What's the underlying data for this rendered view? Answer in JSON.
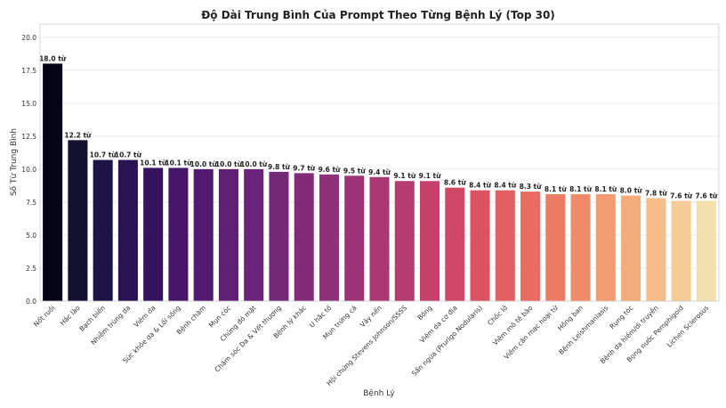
{
  "chart_data": {
    "type": "bar",
    "title": "Độ Dài Trung Bình Của Prompt Theo Từng Bệnh Lý (Top 30)",
    "xlabel": "Bệnh Lý",
    "ylabel": "Số Từ Trung Bình",
    "ylim": [
      0,
      21
    ],
    "yticks": [
      0.0,
      2.5,
      5.0,
      7.5,
      10.0,
      12.5,
      15.0,
      17.5,
      20.0
    ],
    "grid": true,
    "value_suffix": " từ",
    "categories": [
      "Nốt ruồi",
      "Hắc lào",
      "Bạch biến",
      "Nhiễm trùng da",
      "Viêm da",
      "Sức khỏe da & Lối sống",
      "Bệnh chàm",
      "Mụn cóc",
      "Chứng đỏ mặt",
      "Chăm sóc Da & Vết thương",
      "Bệnh lý khác",
      "U hắc tố",
      "Mụn trứng cá",
      "Vảy nến",
      "Hội chứng Stevens Johnson/SSSS",
      "Bỏng",
      "Viêm da cơ địa",
      "Sẩn ngứa (Prurigo Nodularis)",
      "Chốc lở",
      "Viêm mô tế bào",
      "Viêm cân mạc hoại tử",
      "Hồng ban",
      "Bệnh Leishmaniasis",
      "Rụng tóc",
      "Bệnh da hiếm/di truyền",
      "Bọng nước Pemphigoid",
      "Lichen Sclerosus"
    ],
    "values": [
      18.0,
      12.2,
      10.7,
      10.7,
      10.1,
      10.1,
      10.0,
      10.0,
      10.0,
      9.8,
      9.7,
      9.6,
      9.5,
      9.4,
      9.1,
      9.1,
      8.6,
      8.4,
      8.4,
      8.3,
      8.1,
      8.1,
      8.1,
      8.0,
      7.8,
      7.6,
      7.6
    ],
    "colors": [
      "#050417",
      "#14102f",
      "#1d1344",
      "#2a1353",
      "#37125f",
      "#45156a",
      "#521a71",
      "#5e1f75",
      "#6a2378",
      "#762878",
      "#822c79",
      "#8f3078",
      "#9c3376",
      "#a93773",
      "#b63b6f",
      "#c3416a",
      "#cf4866",
      "#d95363",
      "#e25f62",
      "#e86c62",
      "#ed7b64",
      "#f08b69",
      "#f39c71",
      "#f5ac7c",
      "#f6bc89",
      "#f5cc98",
      "#f3e1ad"
    ]
  }
}
